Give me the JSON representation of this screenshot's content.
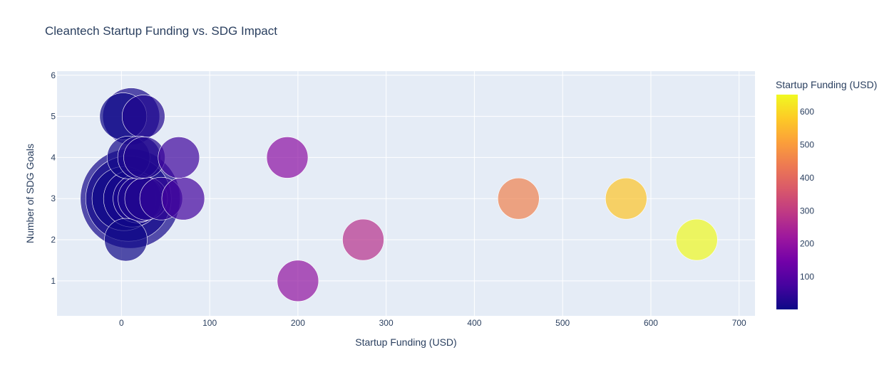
{
  "chart_data": {
    "type": "scatter",
    "title": "Cleantech Startup Funding vs. SDG Impact",
    "xlabel": "Startup Funding (USD)",
    "ylabel": "Number of SDG Goals",
    "xlim": [
      -73,
      718
    ],
    "ylim": [
      0.15,
      6.1
    ],
    "x_ticks": [
      0,
      100,
      200,
      300,
      400,
      500,
      600,
      700
    ],
    "y_ticks": [
      1,
      2,
      3,
      4,
      5,
      6
    ],
    "grid": true,
    "colorbar": {
      "title": "Startup Funding (USD)",
      "range": [
        1,
        652
      ],
      "ticks": [
        100,
        200,
        300,
        400,
        500,
        600
      ],
      "colorscale": [
        "#0d0887",
        "#46039f",
        "#7201a8",
        "#9c179e",
        "#bd3786",
        "#d8576b",
        "#ed7953",
        "#fb9f3a",
        "#fdca26",
        "#f0f921"
      ]
    },
    "points": [
      {
        "x": 10,
        "y": 3,
        "size": 70
      },
      {
        "x": 8,
        "y": 3,
        "size": 60
      },
      {
        "x": 3,
        "y": 3,
        "size": 45
      },
      {
        "x": 12,
        "y": 3,
        "size": 40
      },
      {
        "x": 18,
        "y": 3,
        "size": 34
      },
      {
        "x": 22,
        "y": 3,
        "size": 32
      },
      {
        "x": 28,
        "y": 3,
        "size": 30
      },
      {
        "x": 45,
        "y": 3,
        "size": 30
      },
      {
        "x": 70,
        "y": 3,
        "size": 30
      },
      {
        "x": 11,
        "y": 5,
        "size": 40
      },
      {
        "x": 2,
        "y": 5,
        "size": 33
      },
      {
        "x": 25,
        "y": 5,
        "size": 30
      },
      {
        "x": 8,
        "y": 4,
        "size": 30
      },
      {
        "x": 20,
        "y": 4,
        "size": 30
      },
      {
        "x": 26,
        "y": 4,
        "size": 29
      },
      {
        "x": 65,
        "y": 4,
        "size": 29
      },
      {
        "x": 5,
        "y": 2,
        "size": 30
      },
      {
        "x": 188,
        "y": 4,
        "size": 29
      },
      {
        "x": 200,
        "y": 1,
        "size": 29
      },
      {
        "x": 274,
        "y": 2,
        "size": 29
      },
      {
        "x": 450,
        "y": 3,
        "size": 29
      },
      {
        "x": 572,
        "y": 3,
        "size": 29
      },
      {
        "x": 652,
        "y": 2,
        "size": 29
      }
    ]
  }
}
